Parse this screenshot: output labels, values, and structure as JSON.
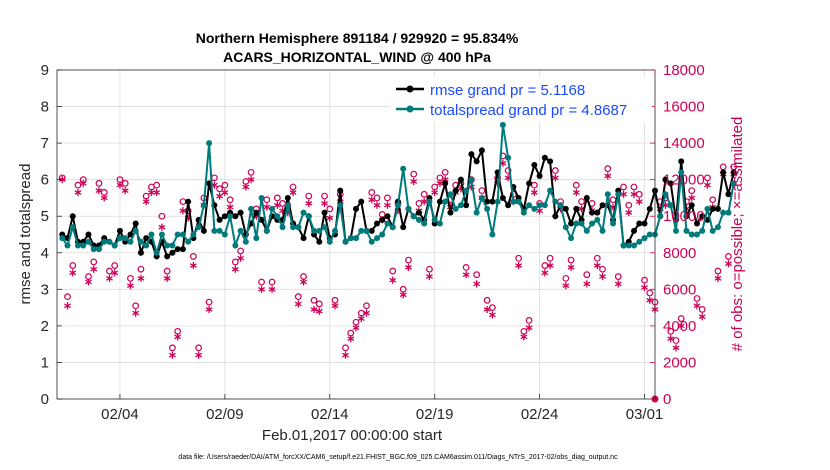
{
  "chart_data": {
    "type": "line",
    "title_line1": "Northern Hemisphere 891184 / 929920 = 95.834%",
    "title_line2": "ACARS_HORIZONTAL_WIND @ 400 hPa",
    "xlabel": "Feb.01,2017 00:00:00 start",
    "ylabel_left": "rmse and totalspread",
    "ylabel_right": "# of obs: o=possible; ×=assimilated",
    "footer": "data file: /Users/raeder/DAI/ATM_forcXX/CAM6_setup/f.e21.FHIST_BGC.f09_025.CAM6assim.011/Diags_NTrS_2017-02/obs_diag_output.nc",
    "xlim": [
      0.5,
      29.0
    ],
    "ylim_left": [
      0,
      9
    ],
    "ylim_right": [
      0,
      18000
    ],
    "xtick_values": [
      3.5,
      8.5,
      13.5,
      18.5,
      23.5,
      28.5
    ],
    "xtick_labels": [
      "02/04",
      "02/09",
      "02/14",
      "02/19",
      "02/24",
      "03/01"
    ],
    "ytick_left": [
      "0",
      "1",
      "2",
      "3",
      "4",
      "5",
      "6",
      "7",
      "8",
      "9"
    ],
    "ytick_right": [
      "0",
      "2000",
      "4000",
      "6000",
      "8000",
      "10000",
      "12000",
      "14000",
      "16000",
      "18000"
    ],
    "colors": {
      "rmse": "#000000",
      "spread": "#007a7a",
      "obs": "#cc0055",
      "legend_text": "#1a4bff"
    },
    "series": [
      {
        "name": "rmse grand pr = 5.1168",
        "axis": "left",
        "values": [
          4.5,
          4.4,
          5.0,
          4.3,
          4.3,
          4.5,
          4.2,
          4.2,
          4.4,
          4.3,
          4.2,
          4.6,
          4.3,
          4.5,
          4.8,
          4.0,
          4.4,
          4.3,
          3.9,
          4.3,
          3.9,
          4.0,
          4.1,
          4.1,
          5.4,
          4.4,
          4.9,
          4.6,
          5.9,
          5.3,
          4.9,
          5.0,
          5.1,
          5.0,
          5.1,
          4.5,
          4.8,
          5.1,
          4.9,
          4.6,
          5.0,
          4.9,
          4.9,
          5.5,
          4.8,
          4.7,
          4.4,
          5.0,
          4.5,
          4.3,
          5.1,
          4.4,
          4.5,
          5.7,
          4.3,
          4.4,
          5.2,
          5.4,
          4.6,
          4.6,
          4.8,
          4.9,
          5.0,
          4.7,
          5.4,
          4.7,
          5.2,
          5.0,
          5.1,
          4.9,
          5.5,
          4.8,
          5.4,
          5.9,
          5.1,
          5.7,
          6.0,
          5.3,
          6.7,
          6.5,
          6.8,
          5.4,
          5.4,
          6.2,
          5.5,
          5.3,
          5.8,
          5.5,
          5.2,
          5.9,
          6.4,
          6.1,
          6.6,
          6.5,
          5.0,
          5.3,
          5.2,
          4.8,
          5.2,
          4.9,
          5.5,
          5.1,
          5.1,
          5.3,
          5.3,
          4.9,
          5.7,
          4.2,
          4.3,
          4.6,
          4.8,
          4.8,
          5.2,
          5.7,
          5.0,
          6.0,
          5.9,
          4.9,
          6.5,
          5.0,
          5.3,
          4.8,
          5.0,
          4.9,
          5.2,
          5.2,
          6.2,
          5.6,
          6.2
        ],
        "marker": "dot"
      },
      {
        "name": "totalspread grand pr = 4.8687",
        "axis": "left",
        "values": [
          4.4,
          4.2,
          4.7,
          4.2,
          4.2,
          4.3,
          4.1,
          4.1,
          4.3,
          4.3,
          4.2,
          4.4,
          4.4,
          4.3,
          4.6,
          4.3,
          4.2,
          4.5,
          4.0,
          4.5,
          4.2,
          4.2,
          4.5,
          4.5,
          4.3,
          4.5,
          4.7,
          5.3,
          7.0,
          4.6,
          4.6,
          4.5,
          5.0,
          4.2,
          4.6,
          4.3,
          5.2,
          4.4,
          5.5,
          4.6,
          5.2,
          5.0,
          4.7,
          5.3,
          4.7,
          4.7,
          5.1,
          5.0,
          4.6,
          4.6,
          4.7,
          4.3,
          4.6,
          5.3,
          4.3,
          4.4,
          4.4,
          4.6,
          4.6,
          4.3,
          4.4,
          4.5,
          4.8,
          4.7,
          5.3,
          6.3,
          5.2,
          5.0,
          4.9,
          4.8,
          5.4,
          4.9,
          4.8,
          5.4,
          5.6,
          5.2,
          5.3,
          5.7,
          6.0,
          5.1,
          5.5,
          5.2,
          4.5,
          5.4,
          7.5,
          6.6,
          5.4,
          5.4,
          5.1,
          5.3,
          5.2,
          5.3,
          5.3,
          5.7,
          5.4,
          5.3,
          4.7,
          4.4,
          4.8,
          4.8,
          4.6,
          4.8,
          4.9,
          4.6,
          5.6,
          4.8,
          5.6,
          4.2,
          4.2,
          4.2,
          4.3,
          4.4,
          4.5,
          4.5,
          5.0,
          5.6,
          5.3,
          4.6,
          6.2,
          4.6,
          4.5,
          4.5,
          4.6,
          5.2,
          4.6,
          4.7,
          5.1,
          5.1,
          5.9
        ],
        "marker": "dot"
      },
      {
        "name": "possible",
        "axis": "right",
        "values": [
          12100,
          5600,
          7300,
          11700,
          12000,
          6700,
          7500,
          11800,
          11300,
          7000,
          7300,
          12000,
          11800,
          6600,
          5100,
          7100,
          11100,
          11600,
          11700,
          10000,
          7000,
          2800,
          3700,
          10800,
          10300,
          7800,
          2800,
          11000,
          5300,
          12100,
          11500,
          11700,
          10900,
          7500,
          8100,
          11900,
          12400,
          10400,
          6400,
          10900,
          6400,
          11000,
          10700,
          10600,
          11600,
          5600,
          6700,
          11100,
          5400,
          5200,
          11100,
          10400,
          5400,
          11200,
          2800,
          3600,
          4200,
          4700,
          5100,
          11300,
          11000,
          10100,
          11000,
          7000,
          10700,
          6000,
          7600,
          12300,
          10700,
          11200,
          7100,
          11600,
          12100,
          12400,
          10900,
          11700,
          11800,
          7200,
          12000,
          6800,
          11400,
          5400,
          5000,
          12100,
          13300,
          12500,
          11200,
          7700,
          3700,
          4300,
          11700,
          10700,
          7300,
          7700,
          12500,
          10800,
          6600,
          7600,
          11700,
          10800,
          6800,
          10700,
          7700,
          7100,
          12600,
          10900,
          6700,
          11600,
          10600,
          11600,
          11200,
          6500,
          5800,
          5300,
          10800,
          11000,
          3700,
          3200,
          4400,
          10800,
          11400,
          5500,
          4900,
          12100,
          10900,
          7000,
          12700,
          7800,
          12700
        ],
        "marker": "circle"
      },
      {
        "name": "assimilated",
        "axis": "right",
        "values": [
          12000,
          5100,
          6900,
          11300,
          11800,
          6400,
          7100,
          11400,
          11000,
          6600,
          6900,
          11700,
          11400,
          6200,
          4700,
          6600,
          10800,
          11300,
          11300,
          9400,
          6600,
          2400,
          3400,
          10300,
          9900,
          7300,
          2400,
          10600,
          4900,
          11700,
          11100,
          11300,
          10500,
          7100,
          7700,
          11600,
          12000,
          10000,
          6000,
          10500,
          6000,
          10600,
          10300,
          10200,
          11300,
          5200,
          6400,
          10700,
          4900,
          4800,
          10700,
          9900,
          5100,
          10800,
          2400,
          3300,
          3900,
          4400,
          4700,
          10900,
          10600,
          9800,
          10600,
          6500,
          10300,
          5700,
          7200,
          11900,
          10300,
          10800,
          6700,
          11300,
          11800,
          12000,
          10500,
          11300,
          11500,
          6800,
          11600,
          6300,
          11000,
          4900,
          4600,
          11800,
          12900,
          12100,
          10800,
          7300,
          3400,
          3900,
          11300,
          10300,
          6900,
          7300,
          12100,
          10400,
          6200,
          7200,
          11300,
          10400,
          6300,
          10300,
          7300,
          6700,
          12200,
          10500,
          6300,
          11200,
          10200,
          11200,
          10800,
          6100,
          5400,
          4900,
          10400,
          10600,
          3300,
          2800,
          4000,
          10400,
          11000,
          5100,
          4500,
          11700,
          10500,
          6600,
          12300,
          7400,
          12300
        ],
        "marker": "asterisk"
      }
    ]
  }
}
